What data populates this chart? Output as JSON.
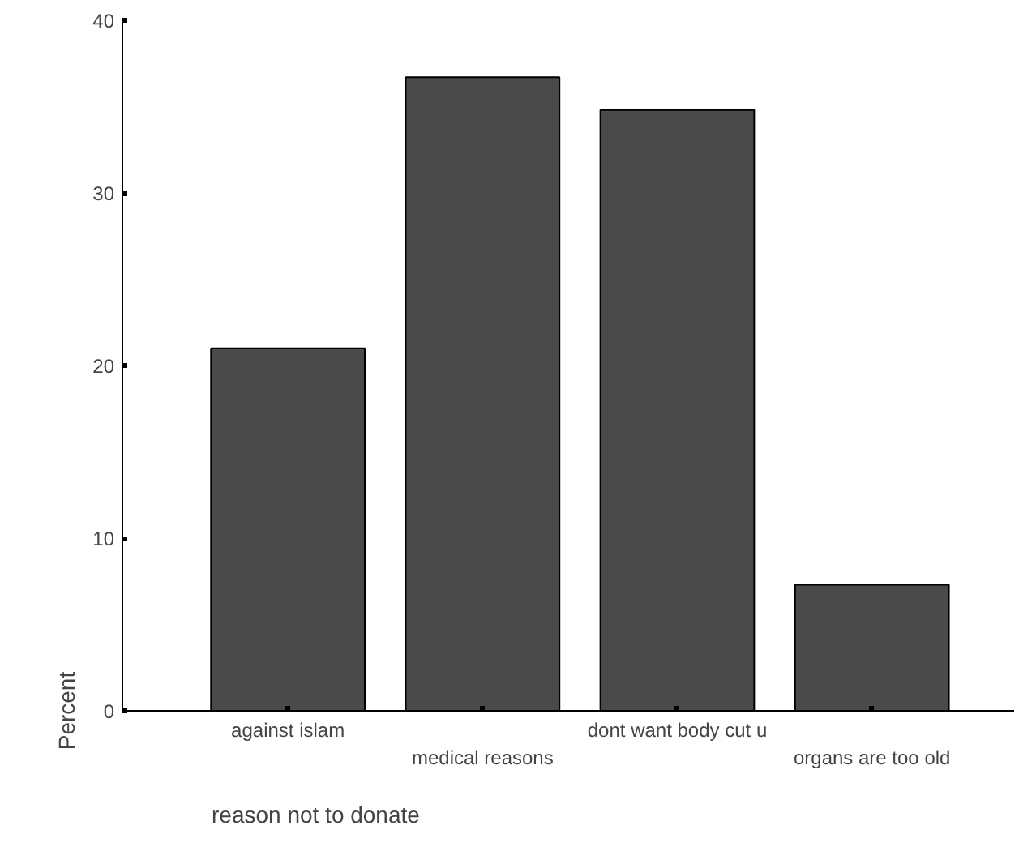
{
  "chart_data": {
    "type": "bar",
    "xlabel": "reason not to donate",
    "ylabel": "Percent",
    "categories": [
      "against islam",
      "medical reasons",
      "dont want body cut u",
      "organs are too old"
    ],
    "values": [
      21,
      36.7,
      34.8,
      7.3
    ],
    "color": "#4a4a4a",
    "ylim": [
      0,
      40
    ],
    "yticks": [
      0,
      10,
      20,
      30,
      40
    ],
    "grid": false
  }
}
